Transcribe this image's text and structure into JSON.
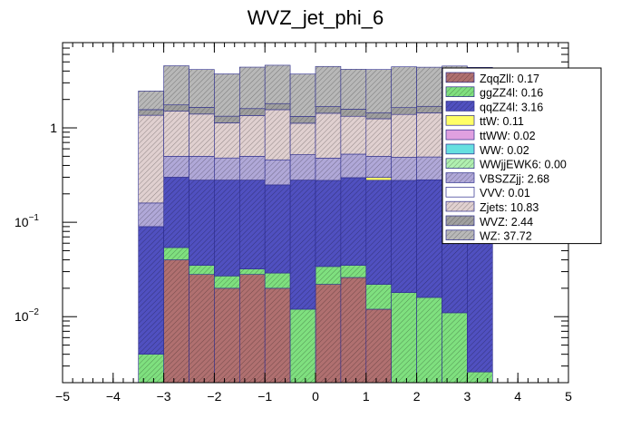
{
  "chart_data": {
    "type": "bar",
    "title": "WVZ_jet_phi_6",
    "xlabel": "",
    "ylabel": "",
    "y_scale": "log",
    "stacked": true,
    "xlim": [
      -5,
      5
    ],
    "ylim": [
      0.002,
      8
    ],
    "grid": false,
    "legend_position": "top-right",
    "x_ticks": [
      "-5",
      "-4",
      "-3",
      "-2",
      "-1",
      "0",
      "1",
      "2",
      "3",
      "4",
      "5"
    ],
    "y_ticks": [
      {
        "value": 1,
        "label": "1"
      },
      {
        "value": 0.1,
        "label": "10",
        "exp": "-1"
      },
      {
        "value": 0.01,
        "label": "10",
        "exp": "-2"
      }
    ],
    "bin_edges": [
      -3.5,
      -3.0,
      -2.5,
      -2.0,
      -1.5,
      -1.0,
      -0.5,
      0.0,
      0.5,
      1.0,
      1.5,
      2.0,
      2.5,
      3.0,
      3.5
    ],
    "series": [
      {
        "name": "ZqqZll",
        "legend": "ZqqZll: 0.17",
        "color": "#b07070",
        "hatch": true,
        "values": [
          0,
          0.04,
          0.028,
          0.02,
          0.028,
          0.02,
          0,
          0.022,
          0.026,
          0.012,
          0,
          0,
          0,
          0
        ]
      },
      {
        "name": "ggZZ4l",
        "legend": "ggZZ4l: 0.16",
        "color": "#7fe07f",
        "hatch": true,
        "values": [
          0.004,
          0.014,
          0.007,
          0.007,
          0.004,
          0.009,
          0.012,
          0.012,
          0.009,
          0.01,
          0.018,
          0.016,
          0.011,
          0.0026
        ]
      },
      {
        "name": "qqZZ4l",
        "legend": "qqZZ4l: 3.16",
        "color": "#5050c0",
        "hatch": true,
        "values": [
          0.086,
          0.246,
          0.245,
          0.253,
          0.248,
          0.22,
          0.268,
          0.244,
          0.262,
          0.257,
          0.26,
          0.266,
          0.258,
          0.18
        ]
      },
      {
        "name": "ttW",
        "legend": "ttW: 0.11",
        "color": "#ffff66",
        "hatch": false,
        "values": [
          0,
          0,
          0,
          0,
          0,
          0,
          0,
          0,
          0,
          0.02,
          0,
          0,
          0,
          0
        ]
      },
      {
        "name": "ttWW",
        "legend": "ttWW: 0.02",
        "color": "#e0a0e0",
        "hatch": false,
        "values": [
          0,
          0,
          0,
          0,
          0,
          0,
          0,
          0,
          0,
          0,
          0,
          0,
          0,
          0
        ]
      },
      {
        "name": "WW",
        "legend": "WW: 0.02",
        "color": "#66e0e0",
        "hatch": false,
        "values": [
          0,
          0,
          0,
          0,
          0,
          0,
          0,
          0,
          0,
          0,
          0,
          0,
          0,
          0
        ]
      },
      {
        "name": "WWjjEWK6",
        "legend": "WWjjEWK6: 0.00",
        "color": "#b0f0b0",
        "hatch": true,
        "values": [
          0,
          0,
          0,
          0,
          0,
          0,
          0,
          0,
          0,
          0,
          0,
          0,
          0,
          0
        ]
      },
      {
        "name": "VBSZZjj",
        "legend": "VBSZZjj: 2.68",
        "color": "#b0a8d8",
        "hatch": true,
        "values": [
          0.07,
          0.2,
          0.22,
          0.2,
          0.22,
          0.21,
          0.24,
          0.2,
          0.23,
          0.2,
          0.21,
          0.21,
          0.2,
          0.14
        ]
      },
      {
        "name": "VVV",
        "legend": "VVV: 0.01",
        "color": "#ffffff",
        "hatch": false,
        "values": [
          0,
          0,
          0,
          0,
          0,
          0,
          0,
          0,
          0,
          0,
          0,
          0,
          0,
          0
        ]
      },
      {
        "name": "Zjets",
        "legend": "Zjets: 10.83",
        "color": "#e0d0d0",
        "hatch": true,
        "values": [
          1.2,
          1.0,
          0.9,
          0.65,
          0.85,
          1.1,
          0.6,
          0.95,
          0.8,
          0.75,
          0.9,
          0.95,
          1.0,
          1.1
        ]
      },
      {
        "name": "WVZ",
        "legend": "WVZ: 2.44",
        "color": "#a0a0a0",
        "hatch": true,
        "values": [
          0.2,
          0.25,
          0.25,
          0.2,
          0.25,
          0.25,
          0.2,
          0.25,
          0.25,
          0.2,
          0.25,
          0.25,
          0.25,
          0.25
        ]
      },
      {
        "name": "WZ",
        "legend": "WZ: 37.72",
        "color": "#b8b8b8",
        "hatch": true,
        "values": [
          0.9,
          2.8,
          2.5,
          2.4,
          2.8,
          2.8,
          2.4,
          2.8,
          2.6,
          2.7,
          2.8,
          2.7,
          2.8,
          2.7
        ]
      }
    ]
  }
}
